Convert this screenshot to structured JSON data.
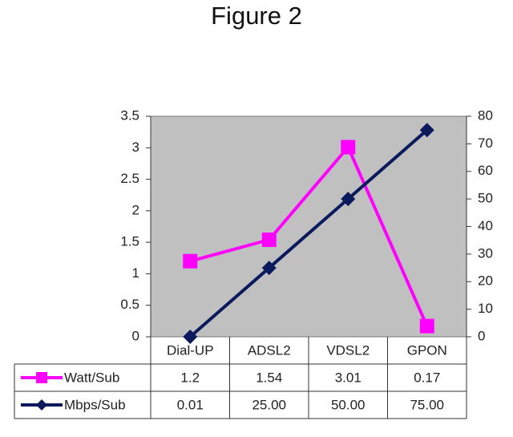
{
  "figure": {
    "title": "Figure 2"
  },
  "chart_data": {
    "type": "line",
    "categories": [
      "Dial-UP",
      "ADSL2",
      "VDSL2",
      "GPON"
    ],
    "series": [
      {
        "name": "Watt/Sub",
        "axis": "left",
        "values": [
          1.2,
          1.54,
          3.01,
          0.17
        ],
        "labels": [
          "1.2",
          "1.54",
          "3.01",
          "0.17"
        ],
        "color": "#ff00ff",
        "marker": "square"
      },
      {
        "name": "Mbps/Sub",
        "axis": "right",
        "values": [
          0.01,
          25.0,
          50.0,
          75.0
        ],
        "labels": [
          "0.01",
          "25.00",
          "50.00",
          "75.00"
        ],
        "color": "#0b1a5c",
        "marker": "diamond"
      }
    ],
    "y_left": {
      "min": 0,
      "max": 3.5,
      "ticks": [
        "0",
        "0.5",
        "1",
        "1.5",
        "2",
        "2.5",
        "3",
        "3.5"
      ]
    },
    "y_right": {
      "min": 0,
      "max": 80,
      "ticks": [
        "0",
        "10",
        "20",
        "30",
        "40",
        "50",
        "60",
        "70",
        "80"
      ]
    },
    "plot_background": "#c0c0c0",
    "data_table": true,
    "grid": false
  }
}
